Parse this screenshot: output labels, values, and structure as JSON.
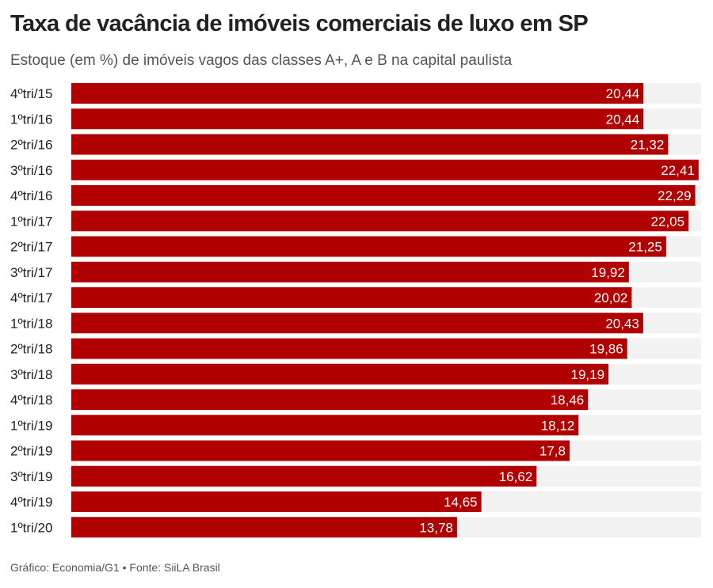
{
  "title": "Taxa de vacância de imóveis comerciais de luxo em SP",
  "subtitle": "Estoque (em %) de imóveis vagos das classes A+, A e B na capital paulista",
  "footer": "Gráfico: Economia/G1 • Fonte: SiiLA Brasil",
  "colors": {
    "bar": "#b00000",
    "track": "#f2f2f2",
    "bar_label": "#ffffff",
    "category_label": "#222222"
  },
  "chart_data": {
    "type": "bar",
    "orientation": "horizontal",
    "title": "Taxa de vacância de imóveis comerciais de luxo em SP",
    "subtitle": "Estoque (em %) de imóveis vagos das classes A+, A e B na capital paulista",
    "xlabel": "",
    "ylabel": "",
    "xlim": [
      0,
      22.5
    ],
    "categories": [
      "4ºtri/15",
      "1ºtri/16",
      "2ºtri/16",
      "3ºtri/16",
      "4ºtri/16",
      "1ºtri/17",
      "2ºtri/17",
      "3ºtri/17",
      "4ºtri/17",
      "1ºtri/18",
      "2ºtri/18",
      "3ºtri/18",
      "4ºtri/18",
      "1ºtri/19",
      "2ºtri/19",
      "3ºtri/19",
      "4ºtri/19",
      "1ºtri/20"
    ],
    "values": [
      20.44,
      20.44,
      21.32,
      22.41,
      22.29,
      22.05,
      21.25,
      19.92,
      20.02,
      20.43,
      19.86,
      19.19,
      18.46,
      18.12,
      17.8,
      16.62,
      14.65,
      13.78
    ],
    "value_labels": [
      "20,44",
      "20,44",
      "21,32",
      "22,41",
      "22,29",
      "22,05",
      "21,25",
      "19,92",
      "20,02",
      "20,43",
      "19,86",
      "19,19",
      "18,46",
      "18,12",
      "17,8",
      "16,62",
      "14,65",
      "13,78"
    ]
  }
}
